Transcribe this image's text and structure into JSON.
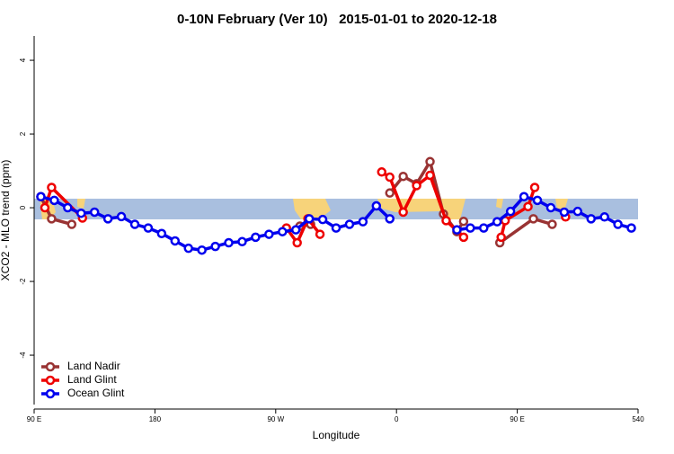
{
  "chart_data": {
    "type": "line",
    "title": "0-10N February (Ver 10)   2015-01-01 to 2020-12-18",
    "x_label": "Longitude",
    "y_label": "XCO2 - MLO trend (ppm)",
    "xlim": [
      90,
      540
    ],
    "ylim": [
      -5.34,
      4.66
    ],
    "xticks": [
      {
        "value": 90,
        "label": "90 E"
      },
      180,
      {
        "value": 270,
        "label": "90 W"
      },
      {
        "value": 360,
        "label": "0"
      },
      {
        "value": 450,
        "label": "90 E"
      },
      540
    ],
    "yticks": [
      -4,
      -2,
      0,
      2,
      4
    ],
    "legend": "bottom-left",
    "series": [
      {
        "name": "Land Nadir",
        "color": "#993333",
        "x": [
          95,
          103,
          118,
          null,
          288,
          296,
          null,
          355,
          365,
          375,
          385,
          395,
          405,
          410,
          null,
          437,
          462,
          476
        ],
        "values": [
          0.3,
          -0.3,
          -0.45,
          null,
          -0.5,
          -0.45,
          null,
          0.4,
          0.85,
          0.65,
          1.25,
          -0.17,
          -0.65,
          -0.37,
          null,
          -0.95,
          -0.3,
          -0.45
        ]
      },
      {
        "name": "Land Glint",
        "color": "#ee0000",
        "x": [
          98,
          103,
          126,
          null,
          278,
          286,
          294,
          303,
          null,
          349,
          355,
          365,
          375,
          385,
          397,
          410,
          null,
          438,
          441,
          458,
          463,
          null,
          486
        ],
        "values": [
          0.0,
          0.55,
          -0.28,
          null,
          -0.55,
          -0.95,
          -0.3,
          -0.72,
          null,
          0.97,
          0.83,
          -0.12,
          0.6,
          0.88,
          -0.35,
          -0.8,
          null,
          -0.8,
          -0.35,
          0.03,
          0.55,
          null,
          -0.25
        ]
      },
      {
        "name": "Ocean Glint",
        "color": "#0000ee",
        "x": [
          95,
          105,
          115,
          125,
          135,
          145,
          155,
          165,
          175,
          185,
          195,
          205,
          215,
          225,
          235,
          245,
          255,
          265,
          275,
          285,
          295,
          305,
          315,
          325,
          335,
          345,
          355,
          null,
          405,
          415,
          425,
          435,
          445,
          455,
          465,
          475,
          485,
          495,
          505,
          515,
          525,
          535
        ],
        "values": [
          0.3,
          0.2,
          0.0,
          -0.15,
          -0.12,
          -0.3,
          -0.24,
          -0.45,
          -0.55,
          -0.7,
          -0.9,
          -1.1,
          -1.15,
          -1.05,
          -0.95,
          -0.92,
          -0.8,
          -0.72,
          -0.65,
          -0.6,
          -0.3,
          -0.32,
          -0.55,
          -0.45,
          -0.38,
          0.05,
          -0.3,
          null,
          -0.6,
          -0.55,
          -0.55,
          -0.38,
          -0.1,
          0.3,
          0.2,
          0.0,
          -0.12,
          -0.1,
          -0.3,
          -0.25,
          -0.45,
          -0.55
        ]
      }
    ]
  }
}
